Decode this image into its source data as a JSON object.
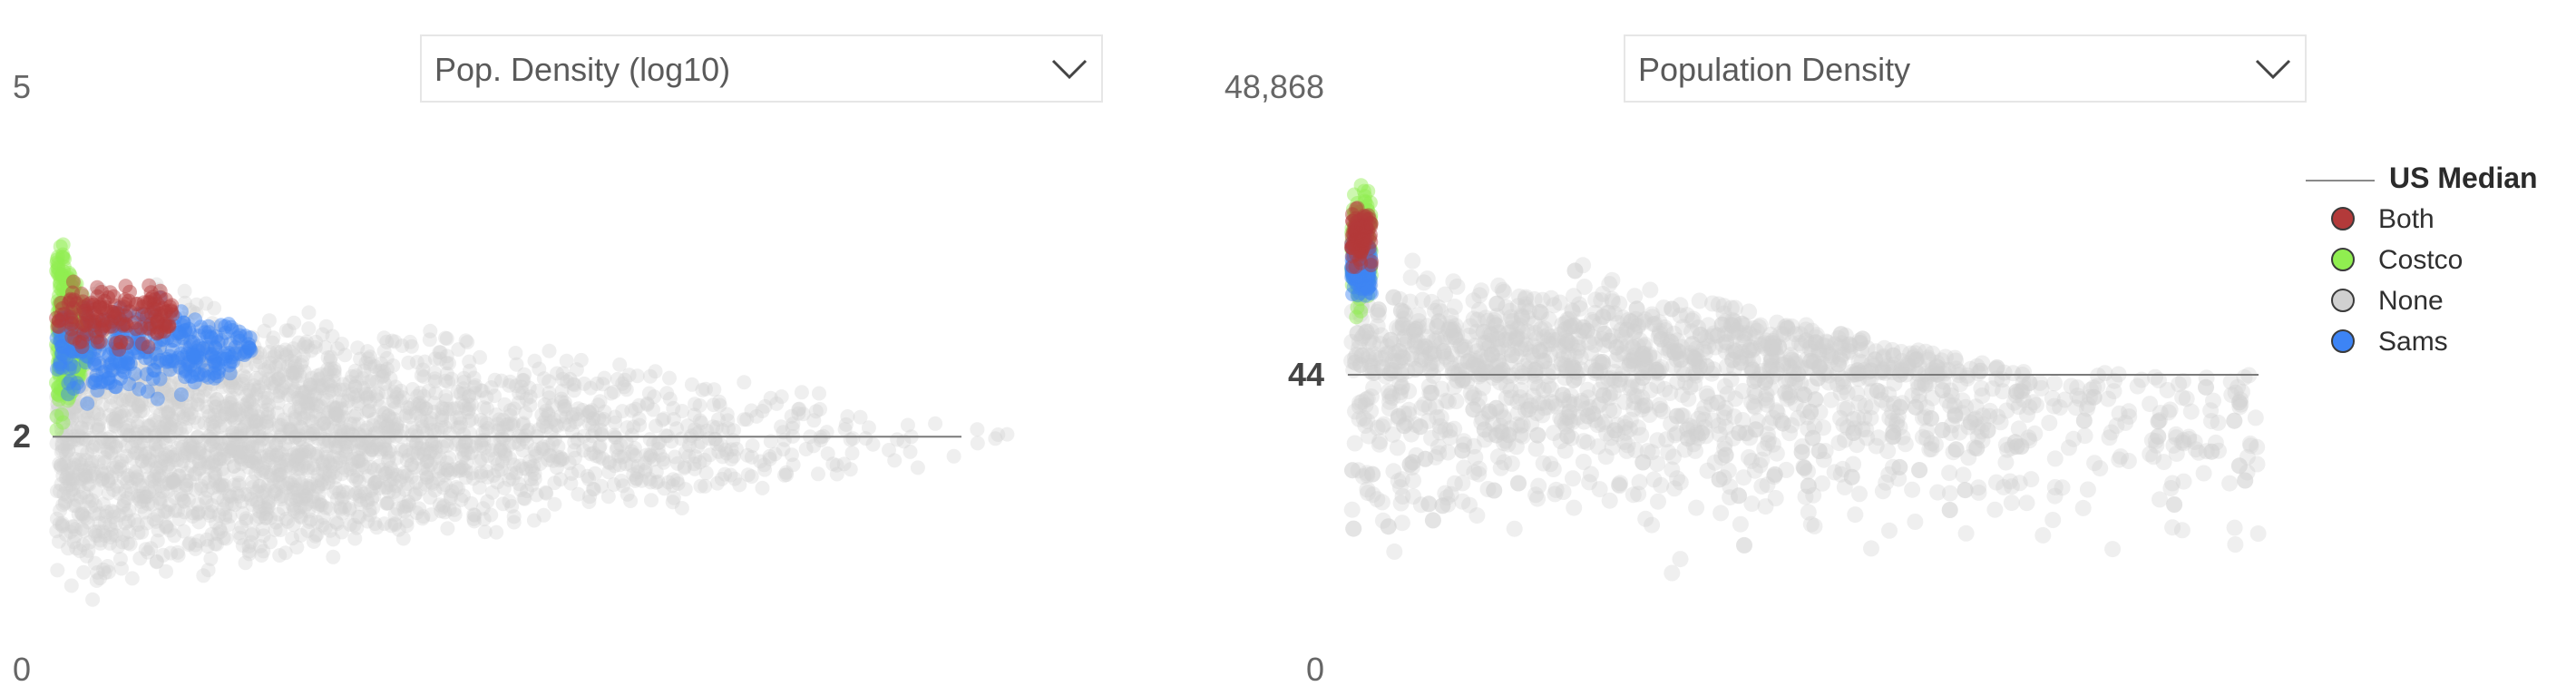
{
  "chart_data": [
    {
      "type": "scatter",
      "title": "",
      "xlabel": "",
      "ylabel": "",
      "measure_selector": "Pop. Density (log10)",
      "y_scale": "log10",
      "ylim": [
        0,
        5
      ],
      "y_tick_labels": [
        "5",
        "2",
        "0"
      ],
      "reference_line": {
        "name": "US Median",
        "value": 2,
        "label": "2"
      },
      "legend": "none",
      "grid": false
    },
    {
      "type": "scatter",
      "title": "",
      "xlabel": "",
      "ylabel": "",
      "measure_selector": "Population Density",
      "y_scale": "linear",
      "ylim": [
        0,
        48868
      ],
      "y_tick_labels": [
        "48,868",
        "44",
        "0"
      ],
      "reference_line": {
        "name": "US Median",
        "value": 44,
        "label": "44"
      },
      "legend": "right",
      "grid": false
    }
  ],
  "legend": {
    "title": "US Median",
    "items": [
      {
        "label": "Both",
        "color": "#b33a3a"
      },
      {
        "label": "Costco",
        "color": "#90ee50"
      },
      {
        "label": "None",
        "color": "#d0d0d0"
      },
      {
        "label": "Sams",
        "color": "#3d84f5"
      }
    ]
  },
  "icons": {
    "dropdown": "chevron-down-icon"
  }
}
